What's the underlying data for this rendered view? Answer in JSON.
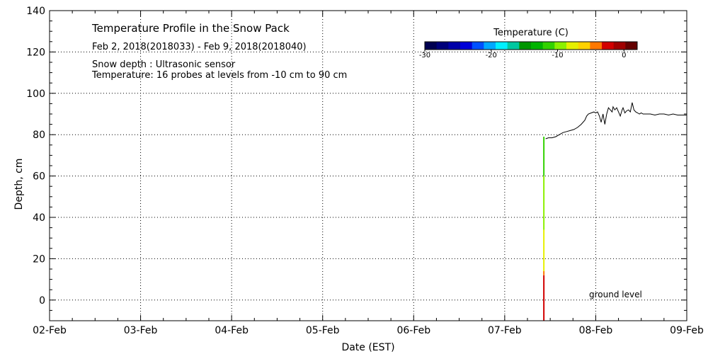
{
  "chart_data": {
    "type": "line",
    "title": "Temperature Profile in the Snow Pack",
    "subtitle": "Feb  2, 2018(2018033) - Feb  9, 2018(2018040)",
    "notes": [
      "Snow depth : Ultrasonic sensor",
      "Temperature: 16 probes at levels from -10 cm to 90 cm"
    ],
    "xlabel": "Date (EST)",
    "ylabel": "Depth, cm",
    "x_tick_labels": [
      "02-Feb",
      "03-Feb",
      "04-Feb",
      "05-Feb",
      "06-Feb",
      "07-Feb",
      "08-Feb",
      "09-Feb"
    ],
    "xlim": [
      0,
      7
    ],
    "ylim": [
      -10,
      140
    ],
    "y_ticks": [
      0,
      20,
      40,
      60,
      80,
      100,
      120,
      140
    ],
    "grid": true,
    "annotation": "ground level",
    "colorbar": {
      "title": "Temperature (C)",
      "range": [
        -30,
        2
      ],
      "tick_values": [
        -30,
        -20,
        -10,
        0
      ],
      "tick_labels": [
        "-30",
        "-20",
        "-10",
        "0"
      ],
      "colors": [
        "#000050",
        "#00007a",
        "#0000a8",
        "#0000d8",
        "#0050ff",
        "#00a8ff",
        "#00f0ff",
        "#00c8a0",
        "#009600",
        "#00b400",
        "#32d200",
        "#8cf000",
        "#e6f000",
        "#ffd200",
        "#ff7800",
        "#d20000",
        "#a00000",
        "#640000"
      ]
    },
    "series": [
      {
        "type": "line",
        "x_unit": "days since 02-Feb 00:00",
        "x": [
          5.45,
          5.48,
          5.52,
          5.56,
          5.6,
          5.64,
          5.68,
          5.72,
          5.76,
          5.8,
          5.84,
          5.88,
          5.9,
          5.92,
          5.95,
          5.98,
          6.0,
          6.02,
          6.04,
          6.06,
          6.08,
          6.1,
          6.12,
          6.14,
          6.16,
          6.18,
          6.19,
          6.21,
          6.23,
          6.25,
          6.27,
          6.29,
          6.3,
          6.32,
          6.34,
          6.36,
          6.38,
          6.4,
          6.42,
          6.44,
          6.46,
          6.48,
          6.5,
          6.52,
          6.56,
          6.6,
          6.65,
          6.7,
          6.75,
          6.8,
          6.85,
          6.9,
          6.95,
          7.0
        ],
        "values": [
          78,
          78.5,
          78.5,
          79,
          80,
          81,
          81.5,
          82,
          82.5,
          83.5,
          85,
          87,
          89,
          90,
          90.5,
          91,
          90.5,
          91,
          89,
          86,
          90,
          85,
          90,
          93,
          92,
          91,
          93.5,
          92,
          93,
          91,
          89,
          92,
          93,
          90.5,
          91.5,
          92,
          91,
          95.5,
          92,
          91,
          90.5,
          90,
          90.5,
          90,
          90,
          90,
          89.5,
          90,
          90,
          89.5,
          90,
          89.5,
          89.5,
          89.5
        ]
      }
    ],
    "profiles": [
      {
        "x": 5.43,
        "segments": [
          {
            "from": -10,
            "to": 12,
            "color": "#d20000"
          },
          {
            "from": 12,
            "to": 14,
            "color": "#ff7800"
          },
          {
            "from": 14,
            "to": 34,
            "color": "#e6f000"
          },
          {
            "from": 34,
            "to": 60,
            "color": "#8cf000"
          },
          {
            "from": 60,
            "to": 79,
            "color": "#32d200"
          }
        ]
      }
    ]
  }
}
